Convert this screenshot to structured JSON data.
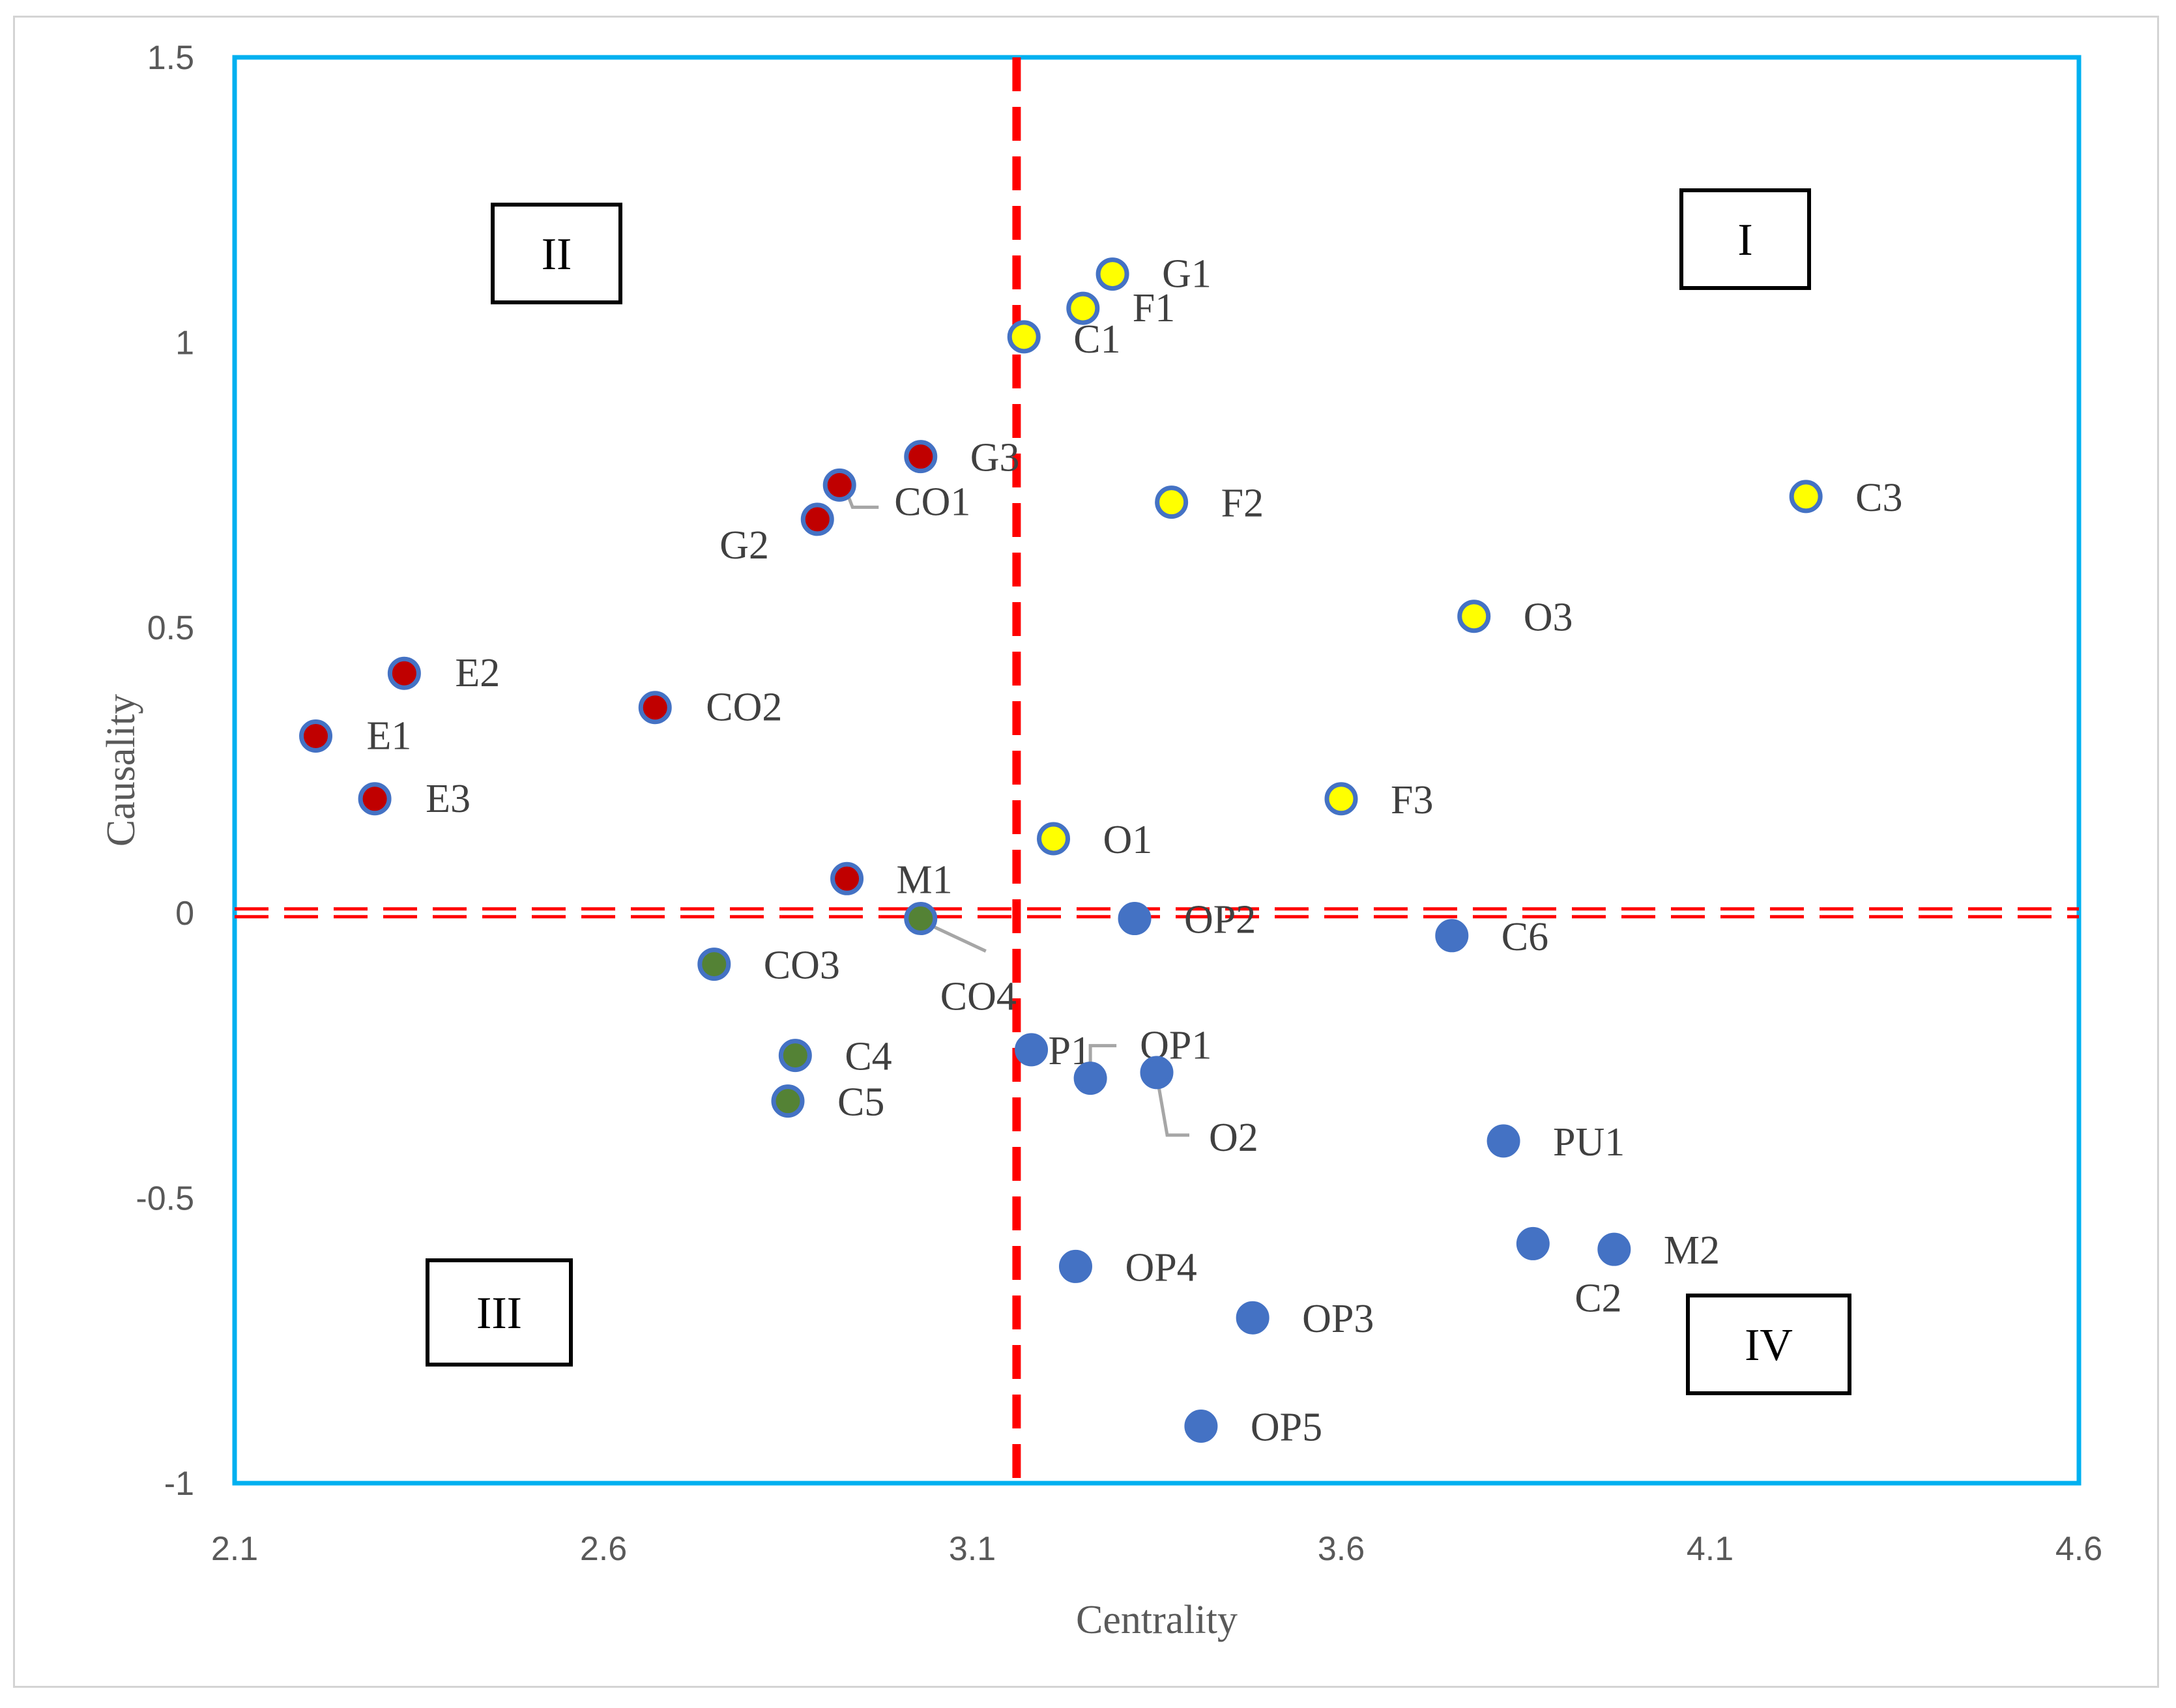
{
  "chart_data": {
    "type": "scatter",
    "title": "",
    "xlabel": "Centrality",
    "ylabel": "Causality",
    "xlim": [
      2.1,
      4.6
    ],
    "ylim": [
      -1,
      1.5
    ],
    "xticks": [
      "2.1",
      "2.6",
      "3.1",
      "3.6",
      "4.1",
      "4.6"
    ],
    "xtick_values": [
      2.1,
      2.6,
      3.1,
      3.6,
      4.1,
      4.6
    ],
    "yticks": [
      "1.5",
      "1",
      "0.5",
      "0",
      "-0.5",
      "-1"
    ],
    "ytick_values": [
      1.5,
      1,
      0.5,
      0,
      -0.5,
      -1
    ],
    "grid": false,
    "reference_lines": [
      {
        "orientation": "vertical",
        "value": 3.16,
        "style": "dashed",
        "color": "#ff0000"
      },
      {
        "orientation": "horizontal",
        "value": 0,
        "style": "double-dashed",
        "color": "#ff0000"
      }
    ],
    "quadrants": [
      "I",
      "II",
      "III",
      "IV"
    ],
    "colors": {
      "plot_border": "#00b0f0",
      "red": "#c00000",
      "yellow": "#ffff00",
      "green": "#548235",
      "blue": "#4472c4",
      "marker_outline": "#4472c4"
    },
    "series": [
      {
        "name": "red",
        "color": "#c00000",
        "points": [
          {
            "label": "E1",
            "x": 2.21,
            "y": 0.31
          },
          {
            "label": "E2",
            "x": 2.33,
            "y": 0.42
          },
          {
            "label": "E3",
            "x": 2.29,
            "y": 0.2
          },
          {
            "label": "CO2",
            "x": 2.67,
            "y": 0.36
          },
          {
            "label": "G2",
            "x": 2.89,
            "y": 0.69
          },
          {
            "label": "CO1",
            "x": 2.92,
            "y": 0.75
          },
          {
            "label": "G3",
            "x": 3.03,
            "y": 0.8
          },
          {
            "label": "M1",
            "x": 2.93,
            "y": 0.06
          }
        ]
      },
      {
        "name": "yellow",
        "color": "#ffff00",
        "points": [
          {
            "label": "C1",
            "x": 3.17,
            "y": 1.01
          },
          {
            "label": "F1",
            "x": 3.25,
            "y": 1.06
          },
          {
            "label": "G1",
            "x": 3.29,
            "y": 1.12
          },
          {
            "label": "F2",
            "x": 3.37,
            "y": 0.72
          },
          {
            "label": "O1",
            "x": 3.21,
            "y": 0.13
          },
          {
            "label": "F3",
            "x": 3.6,
            "y": 0.2
          },
          {
            "label": "O3",
            "x": 3.78,
            "y": 0.52
          },
          {
            "label": "C3",
            "x": 4.23,
            "y": 0.73
          }
        ]
      },
      {
        "name": "green",
        "color": "#548235",
        "points": [
          {
            "label": "CO3",
            "x": 2.75,
            "y": -0.09
          },
          {
            "label": "C4",
            "x": 2.86,
            "y": -0.25
          },
          {
            "label": "C5",
            "x": 2.85,
            "y": -0.33
          },
          {
            "label": "CO4",
            "x": 3.03,
            "y": -0.01
          }
        ]
      },
      {
        "name": "blue",
        "color": "#4472c4",
        "points": [
          {
            "label": "OP2",
            "x": 3.32,
            "y": -0.01
          },
          {
            "label": "C6",
            "x": 3.75,
            "y": -0.04
          },
          {
            "label": "P1",
            "x": 3.18,
            "y": -0.24
          },
          {
            "label": "OP1",
            "x": 3.26,
            "y": -0.29
          },
          {
            "label": "O2",
            "x": 3.35,
            "y": -0.28
          },
          {
            "label": "PU1",
            "x": 3.82,
            "y": -0.4
          },
          {
            "label": "C2",
            "x": 3.86,
            "y": -0.58
          },
          {
            "label": "M2",
            "x": 3.97,
            "y": -0.59
          },
          {
            "label": "OP4",
            "x": 3.24,
            "y": -0.62
          },
          {
            "label": "OP3",
            "x": 3.48,
            "y": -0.71
          },
          {
            "label": "OP5",
            "x": 3.41,
            "y": -0.9
          }
        ]
      }
    ]
  }
}
